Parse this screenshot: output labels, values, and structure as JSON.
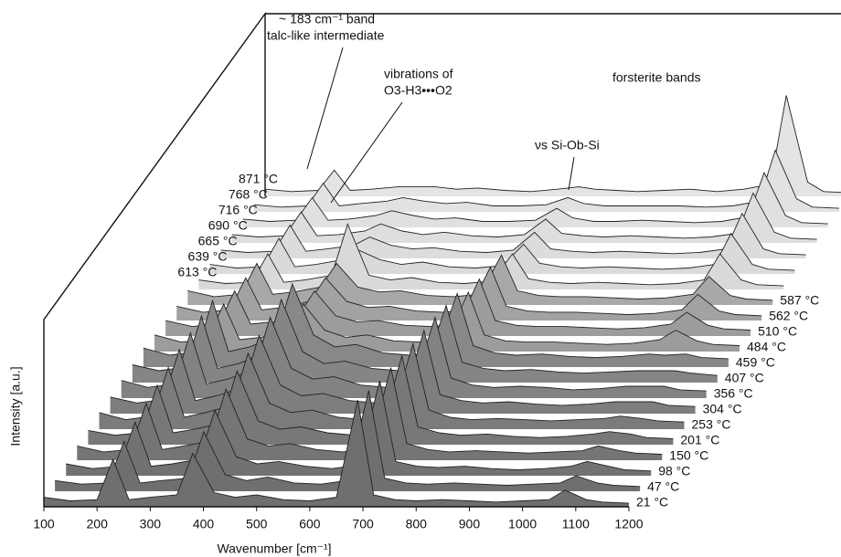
{
  "chart_data": {
    "type": "waterfall",
    "x_label": "Wavenumber [cm⁻¹]",
    "y_label": "Intensity [a.u.]",
    "xlim": [
      100,
      1200
    ],
    "xticks": [
      100,
      200,
      300,
      400,
      500,
      600,
      700,
      800,
      900,
      1000,
      1100,
      1200
    ],
    "ylim": [
      0,
      100
    ],
    "x": [
      100,
      150,
      200,
      230,
      260,
      300,
      350,
      380,
      420,
      460,
      500,
      550,
      600,
      650,
      690,
      720,
      760,
      800,
      850,
      900,
      950,
      1000,
      1050,
      1080,
      1120,
      1150,
      1200
    ],
    "series": [
      {
        "name": "21 °C",
        "color": "#6f6f6f",
        "values": [
          8,
          5,
          6,
          40,
          6,
          8,
          10,
          45,
          12,
          8,
          10,
          6,
          5,
          8,
          90,
          10,
          6,
          5,
          6,
          5,
          4,
          5,
          6,
          14,
          6,
          4,
          3
        ]
      },
      {
        "name": "47 °C",
        "color": "#6f6f6f",
        "values": [
          9,
          6,
          7,
          42,
          7,
          9,
          11,
          50,
          14,
          9,
          12,
          7,
          6,
          9,
          85,
          11,
          7,
          6,
          7,
          6,
          5,
          6,
          7,
          13,
          7,
          5,
          4
        ]
      },
      {
        "name": "98 °C",
        "color": "#727272",
        "values": [
          10,
          6,
          8,
          45,
          8,
          10,
          14,
          55,
          16,
          10,
          12,
          8,
          6,
          9,
          80,
          12,
          8,
          7,
          8,
          6,
          5,
          6,
          8,
          12,
          8,
          5,
          4
        ]
      },
      {
        "name": "150 °C",
        "color": "#757575",
        "values": [
          12,
          7,
          9,
          48,
          9,
          12,
          16,
          60,
          18,
          12,
          14,
          9,
          7,
          10,
          78,
          14,
          9,
          7,
          8,
          7,
          6,
          7,
          8,
          12,
          8,
          6,
          5
        ]
      },
      {
        "name": "201 °C",
        "color": "#787878",
        "values": [
          12,
          8,
          10,
          50,
          10,
          13,
          18,
          62,
          20,
          13,
          15,
          10,
          8,
          10,
          75,
          15,
          10,
          8,
          9,
          7,
          6,
          7,
          9,
          11,
          9,
          6,
          5
        ]
      },
      {
        "name": "253 °C",
        "color": "#7b7b7b",
        "values": [
          14,
          8,
          11,
          52,
          10,
          14,
          20,
          64,
          22,
          14,
          16,
          10,
          8,
          11,
          72,
          16,
          10,
          8,
          9,
          8,
          7,
          8,
          9,
          11,
          9,
          7,
          6
        ]
      },
      {
        "name": "304 °C",
        "color": "#7e7e7e",
        "values": [
          14,
          9,
          12,
          54,
          11,
          15,
          22,
          66,
          24,
          15,
          17,
          11,
          9,
          11,
          70,
          16,
          11,
          9,
          10,
          8,
          7,
          8,
          10,
          10,
          10,
          7,
          6
        ]
      },
      {
        "name": "356 °C",
        "color": "#828282",
        "values": [
          15,
          9,
          12,
          55,
          12,
          16,
          24,
          68,
          25,
          16,
          18,
          11,
          9,
          12,
          68,
          17,
          11,
          9,
          10,
          9,
          7,
          8,
          10,
          10,
          10,
          7,
          6
        ]
      },
      {
        "name": "407 °C",
        "color": "#858585",
        "values": [
          15,
          10,
          13,
          56,
          12,
          16,
          25,
          70,
          26,
          16,
          18,
          12,
          10,
          12,
          65,
          17,
          12,
          10,
          11,
          9,
          8,
          9,
          10,
          10,
          10,
          8,
          6
        ]
      },
      {
        "name": "459 °C",
        "color": "#888888",
        "values": [
          16,
          10,
          13,
          56,
          13,
          17,
          26,
          70,
          27,
          17,
          19,
          12,
          10,
          12,
          62,
          18,
          12,
          10,
          11,
          9,
          8,
          9,
          11,
          10,
          11,
          8,
          7
        ]
      },
      {
        "name": "484 °C",
        "color": "#9c9c9c",
        "values": [
          14,
          8,
          10,
          40,
          10,
          12,
          18,
          40,
          18,
          12,
          14,
          9,
          8,
          10,
          50,
          14,
          9,
          8,
          8,
          7,
          6,
          7,
          10,
          18,
          9,
          6,
          5
        ]
      },
      {
        "name": "510 °C",
        "color": "#9c9c9c",
        "values": [
          13,
          8,
          10,
          38,
          10,
          12,
          17,
          38,
          17,
          12,
          13,
          9,
          8,
          10,
          48,
          13,
          9,
          8,
          8,
          7,
          6,
          7,
          10,
          20,
          9,
          6,
          5
        ]
      },
      {
        "name": "562 °C",
        "color": "#a2a2a2",
        "values": [
          12,
          7,
          9,
          36,
          9,
          11,
          16,
          36,
          16,
          11,
          12,
          8,
          7,
          9,
          45,
          12,
          8,
          7,
          7,
          6,
          5,
          6,
          9,
          22,
          8,
          5,
          4
        ]
      },
      {
        "name": "587 °C",
        "color": "#a8a8a8",
        "values": [
          12,
          7,
          9,
          35,
          9,
          11,
          15,
          35,
          15,
          11,
          12,
          8,
          7,
          9,
          42,
          12,
          8,
          7,
          7,
          6,
          5,
          6,
          9,
          24,
          8,
          5,
          4
        ]
      },
      {
        "name": "613 °C",
        "color": "#d9d9d9",
        "values": [
          8,
          5,
          6,
          30,
          6,
          8,
          12,
          55,
          12,
          8,
          10,
          6,
          5,
          7,
          30,
          9,
          6,
          5,
          6,
          5,
          4,
          5,
          8,
          30,
          8,
          4,
          3
        ]
      },
      {
        "name": "639 °C",
        "color": "#dadada",
        "values": [
          8,
          5,
          6,
          30,
          6,
          8,
          12,
          20,
          12,
          8,
          10,
          6,
          5,
          7,
          25,
          9,
          6,
          5,
          6,
          5,
          4,
          5,
          8,
          34,
          8,
          4,
          3
        ]
      },
      {
        "name": "665 °C",
        "color": "#dcdcdc",
        "values": [
          7,
          5,
          6,
          28,
          6,
          8,
          11,
          18,
          11,
          8,
          9,
          6,
          5,
          7,
          22,
          8,
          6,
          5,
          6,
          5,
          4,
          5,
          8,
          38,
          8,
          4,
          3
        ]
      },
      {
        "name": "690 °C",
        "color": "#dedede",
        "values": [
          7,
          5,
          6,
          26,
          6,
          7,
          10,
          16,
          10,
          7,
          9,
          6,
          5,
          7,
          20,
          8,
          6,
          5,
          6,
          5,
          4,
          5,
          8,
          42,
          9,
          4,
          3
        ]
      },
      {
        "name": "716 °C",
        "color": "#e0e0e0",
        "values": [
          7,
          5,
          6,
          25,
          6,
          7,
          10,
          14,
          10,
          7,
          8,
          5,
          5,
          6,
          16,
          8,
          5,
          5,
          6,
          5,
          4,
          5,
          9,
          46,
          10,
          4,
          3
        ]
      },
      {
        "name": "768 °C",
        "color": "#e2e2e2",
        "values": [
          6,
          4,
          5,
          24,
          5,
          7,
          9,
          12,
          9,
          7,
          8,
          5,
          5,
          6,
          12,
          7,
          5,
          5,
          5,
          5,
          4,
          5,
          9,
          52,
          11,
          4,
          3
        ]
      },
      {
        "name": "871 °C",
        "color": "#e4e4e4",
        "values": [
          6,
          4,
          5,
          22,
          5,
          6,
          8,
          8,
          8,
          6,
          7,
          5,
          4,
          6,
          8,
          6,
          5,
          4,
          5,
          6,
          4,
          6,
          10,
          85,
          12,
          4,
          3
        ]
      }
    ],
    "annotations": [
      "~ 183 cm⁻¹ band",
      "talc-like intermediate",
      "vibrations of",
      "O3-H3•••O2",
      "forsterite bands",
      "νs Si-Ob-Si"
    ]
  }
}
